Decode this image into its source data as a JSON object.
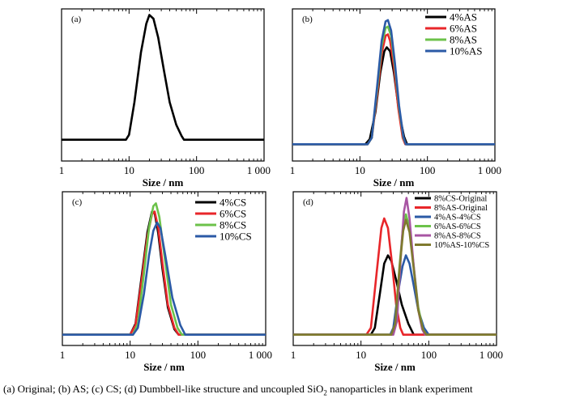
{
  "caption": {
    "before": "(a) Original; (b) AS; (c) CS; (d) Dumbbell-like structure and uncoupled SiO",
    "subscript": "2",
    "after": " nanoparticles in blank experiment"
  },
  "chart_data": [
    {
      "panel": "(a)",
      "type": "line",
      "xscale": "log",
      "xlim": [
        1,
        1000
      ],
      "xticks": [
        "1",
        "10",
        "100",
        "1 000"
      ],
      "xlabel": "Size / nm",
      "ylabel": "",
      "legend": "none",
      "series": [
        {
          "name": "",
          "color": "#000000",
          "points": [
            [
              1,
              0
            ],
            [
              9,
              0
            ],
            [
              10,
              4
            ],
            [
              12,
              30
            ],
            [
              15,
              70
            ],
            [
              18,
              93
            ],
            [
              20,
              100
            ],
            [
              23,
              97
            ],
            [
              27,
              82
            ],
            [
              33,
              55
            ],
            [
              40,
              30
            ],
            [
              50,
              12
            ],
            [
              60,
              3
            ],
            [
              65,
              0
            ],
            [
              1000,
              0
            ]
          ]
        }
      ]
    },
    {
      "panel": "(b)",
      "type": "line",
      "xscale": "log",
      "xlim": [
        1,
        1000
      ],
      "xticks": [
        "1",
        "10",
        "100",
        "1 000"
      ],
      "xlabel": "Size / nm",
      "ylabel": "",
      "legend": "top-right",
      "series": [
        {
          "name": "4%AS",
          "color": "#000000",
          "points": [
            [
              1,
              0
            ],
            [
              12,
              0
            ],
            [
              14,
              4
            ],
            [
              17,
              25
            ],
            [
              20,
              55
            ],
            [
              23,
              72
            ],
            [
              25,
              75
            ],
            [
              28,
              72
            ],
            [
              32,
              55
            ],
            [
              38,
              25
            ],
            [
              45,
              6
            ],
            [
              50,
              0
            ],
            [
              1000,
              0
            ]
          ]
        },
        {
          "name": "6%AS",
          "color": "#e8262a",
          "points": [
            [
              1,
              0
            ],
            [
              13,
              0
            ],
            [
              15,
              5
            ],
            [
              18,
              38
            ],
            [
              21,
              70
            ],
            [
              24,
              84
            ],
            [
              26,
              85
            ],
            [
              28,
              80
            ],
            [
              32,
              60
            ],
            [
              37,
              28
            ],
            [
              43,
              5
            ],
            [
              47,
              0
            ],
            [
              1000,
              0
            ]
          ]
        },
        {
          "name": "8%AS",
          "color": "#6cc24a",
          "points": [
            [
              1,
              0
            ],
            [
              13,
              0
            ],
            [
              15,
              5
            ],
            [
              18,
              42
            ],
            [
              21,
              76
            ],
            [
              24,
              90
            ],
            [
              26,
              91
            ],
            [
              29,
              84
            ],
            [
              33,
              60
            ],
            [
              38,
              28
            ],
            [
              44,
              5
            ],
            [
              48,
              0
            ],
            [
              1000,
              0
            ]
          ]
        },
        {
          "name": "10%AS",
          "color": "#2b5aa6",
          "points": [
            [
              1,
              0
            ],
            [
              13,
              0
            ],
            [
              15,
              5
            ],
            [
              18,
              45
            ],
            [
              21,
              80
            ],
            [
              24,
              95
            ],
            [
              26,
              96
            ],
            [
              29,
              88
            ],
            [
              33,
              63
            ],
            [
              38,
              30
            ],
            [
              44,
              6
            ],
            [
              48,
              0
            ],
            [
              1000,
              0
            ]
          ]
        }
      ]
    },
    {
      "panel": "(c)",
      "type": "line",
      "xscale": "log",
      "xlim": [
        1,
        1000
      ],
      "xticks": [
        "1",
        "10",
        "100",
        "1 000"
      ],
      "xlabel": "Size / nm",
      "ylabel": "",
      "legend": "top-right",
      "series": [
        {
          "name": "4%CS",
          "color": "#000000",
          "points": [
            [
              1,
              0
            ],
            [
              10,
              0
            ],
            [
              12,
              8
            ],
            [
              15,
              45
            ],
            [
              18,
              75
            ],
            [
              21,
              90
            ],
            [
              23,
              89
            ],
            [
              26,
              74
            ],
            [
              30,
              48
            ],
            [
              36,
              20
            ],
            [
              45,
              4
            ],
            [
              52,
              0
            ],
            [
              1000,
              0
            ]
          ]
        },
        {
          "name": "6%CS",
          "color": "#e8262a",
          "points": [
            [
              1,
              0
            ],
            [
              10,
              0
            ],
            [
              12,
              7
            ],
            [
              15,
              42
            ],
            [
              18,
              72
            ],
            [
              21,
              88
            ],
            [
              23,
              90
            ],
            [
              26,
              78
            ],
            [
              30,
              52
            ],
            [
              36,
              22
            ],
            [
              45,
              5
            ],
            [
              52,
              0
            ],
            [
              1000,
              0
            ]
          ]
        },
        {
          "name": "8%CS",
          "color": "#6cc24a",
          "points": [
            [
              1,
              0
            ],
            [
              11,
              0
            ],
            [
              13,
              8
            ],
            [
              16,
              45
            ],
            [
              19,
              78
            ],
            [
              22,
              94
            ],
            [
              24,
              96
            ],
            [
              27,
              86
            ],
            [
              32,
              58
            ],
            [
              40,
              22
            ],
            [
              50,
              5
            ],
            [
              58,
              0
            ],
            [
              1000,
              0
            ]
          ]
        },
        {
          "name": "10%CS",
          "color": "#2b5aa6",
          "points": [
            [
              1,
              0
            ],
            [
              11,
              0
            ],
            [
              13,
              5
            ],
            [
              16,
              30
            ],
            [
              19,
              58
            ],
            [
              22,
              76
            ],
            [
              25,
              82
            ],
            [
              28,
              78
            ],
            [
              33,
              58
            ],
            [
              42,
              27
            ],
            [
              55,
              7
            ],
            [
              65,
              0
            ],
            [
              1000,
              0
            ]
          ]
        }
      ]
    },
    {
      "panel": "(d)",
      "type": "line",
      "xscale": "log",
      "xlim": [
        1,
        1000
      ],
      "xticks": [
        "1",
        "10",
        "100",
        "1 000"
      ],
      "xlabel": "Size / nm",
      "ylabel": "",
      "legend": "top-right",
      "series": [
        {
          "name": "8%CS-Original",
          "color": "#000000",
          "points": [
            [
              1,
              0
            ],
            [
              14,
              0
            ],
            [
              16,
              5
            ],
            [
              19,
              30
            ],
            [
              22,
              52
            ],
            [
              25,
              58
            ],
            [
              28,
              54
            ],
            [
              33,
              40
            ],
            [
              40,
              22
            ],
            [
              50,
              8
            ],
            [
              60,
              0
            ],
            [
              1000,
              0
            ]
          ]
        },
        {
          "name": "8%AS-Original",
          "color": "#e8262a",
          "points": [
            [
              1,
              0
            ],
            [
              12,
              0
            ],
            [
              14,
              5
            ],
            [
              17,
              45
            ],
            [
              20,
              78
            ],
            [
              22,
              85
            ],
            [
              25,
              78
            ],
            [
              29,
              50
            ],
            [
              33,
              22
            ],
            [
              38,
              5
            ],
            [
              42,
              0
            ],
            [
              1000,
              0
            ]
          ]
        },
        {
          "name": "4%AS-4%CS",
          "color": "#2b5aa6",
          "points": [
            [
              1,
              0
            ],
            [
              27,
              0
            ],
            [
              30,
              5
            ],
            [
              35,
              30
            ],
            [
              41,
              50
            ],
            [
              46,
              58
            ],
            [
              52,
              52
            ],
            [
              60,
              36
            ],
            [
              70,
              18
            ],
            [
              85,
              5
            ],
            [
              100,
              0
            ],
            [
              1000,
              0
            ]
          ]
        },
        {
          "name": "6%AS-6%CS",
          "color": "#6cc24a",
          "points": [
            [
              1,
              0
            ],
            [
              28,
              0
            ],
            [
              32,
              8
            ],
            [
              37,
              50
            ],
            [
              42,
              80
            ],
            [
              46,
              88
            ],
            [
              52,
              78
            ],
            [
              60,
              50
            ],
            [
              70,
              20
            ],
            [
              82,
              4
            ],
            [
              92,
              0
            ],
            [
              1000,
              0
            ]
          ]
        },
        {
          "name": "8%AS-8%CS",
          "color": "#a855a3",
          "points": [
            [
              1,
              0
            ],
            [
              30,
              0
            ],
            [
              34,
              10
            ],
            [
              39,
              60
            ],
            [
              43,
              90
            ],
            [
              47,
              100
            ],
            [
              52,
              85
            ],
            [
              60,
              50
            ],
            [
              70,
              18
            ],
            [
              80,
              4
            ],
            [
              88,
              0
            ],
            [
              1000,
              0
            ]
          ]
        },
        {
          "name": "10%AS-10%CS",
          "color": "#7f7a2e",
          "points": [
            [
              1,
              0
            ],
            [
              28,
              0
            ],
            [
              32,
              8
            ],
            [
              37,
              48
            ],
            [
              42,
              76
            ],
            [
              46,
              84
            ],
            [
              52,
              75
            ],
            [
              60,
              48
            ],
            [
              70,
              18
            ],
            [
              82,
              4
            ],
            [
              92,
              0
            ],
            [
              1000,
              0
            ]
          ]
        }
      ]
    }
  ]
}
